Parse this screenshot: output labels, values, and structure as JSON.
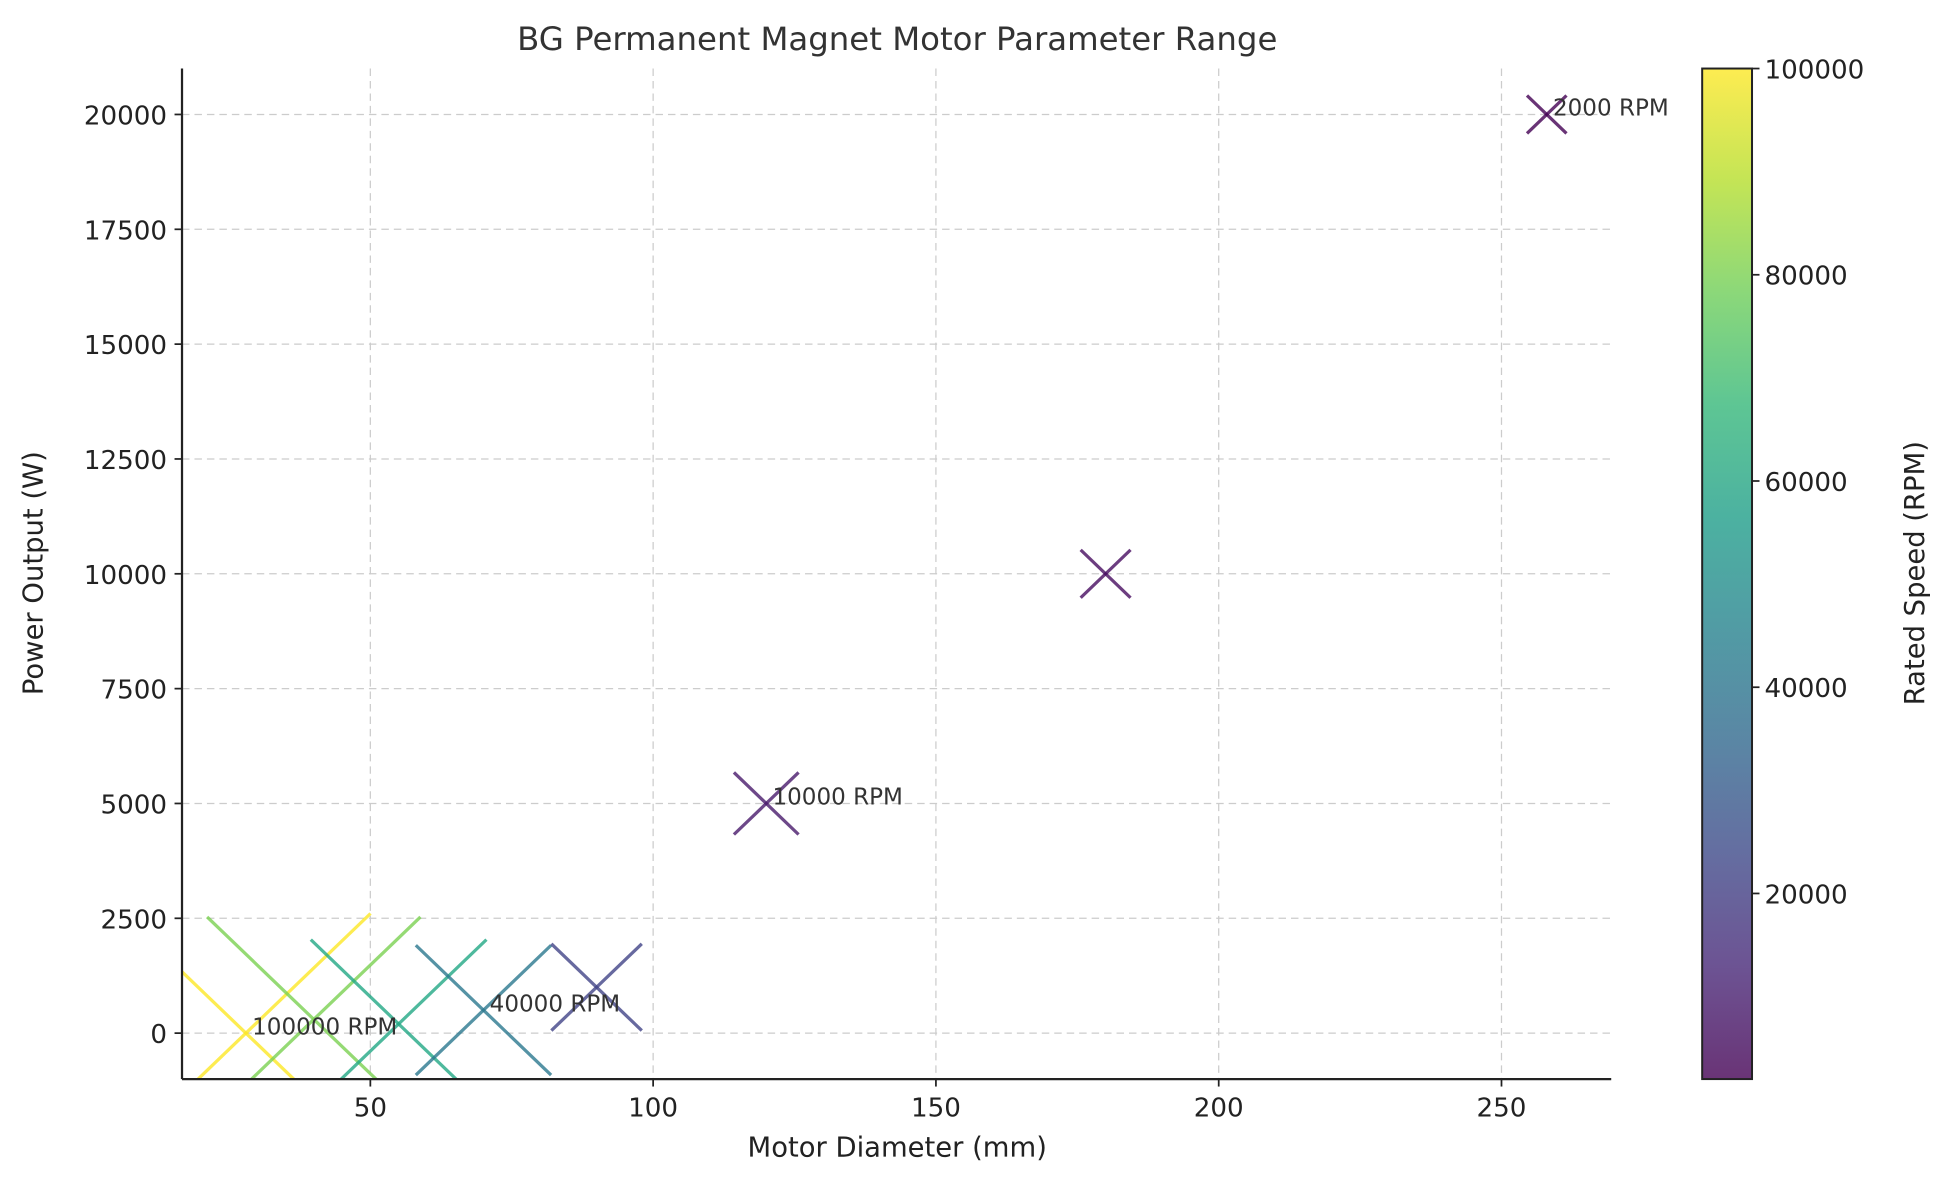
{
  "chart_data": {
    "type": "scatter",
    "title": "BG Permanent Magnet Motor Parameter Range",
    "xlabel": "Motor Diameter (mm)",
    "ylabel": "Power Output (W)",
    "xlim": [
      16.7,
      269.4
    ],
    "ylim": [
      -1000,
      21000
    ],
    "xticks": [
      50,
      100,
      150,
      200,
      250
    ],
    "yticks": [
      0,
      2500,
      5000,
      7500,
      10000,
      12500,
      15000,
      17500,
      20000
    ],
    "grid": true,
    "marker": "x",
    "points": [
      {
        "x": 28,
        "y": 0,
        "rpm": 100000,
        "color": "#fde725",
        "label": "100000 RPM"
      },
      {
        "x": 40,
        "y": 300,
        "rpm": 80000,
        "color": "#7ad151",
        "label": ""
      },
      {
        "x": 55,
        "y": 200,
        "rpm": 60000,
        "color": "#22a884",
        "label": ""
      },
      {
        "x": 70,
        "y": 500,
        "rpm": 40000,
        "color": "#2a788e",
        "label": "40000 RPM"
      },
      {
        "x": 90,
        "y": 1000,
        "rpm": 20000,
        "color": "#414487",
        "label": ""
      },
      {
        "x": 120,
        "y": 5000,
        "rpm": 10000,
        "color": "#481a6c",
        "label": "10000 RPM"
      },
      {
        "x": 180,
        "y": 10000,
        "rpm": 5000,
        "color": "#470d60",
        "label": ""
      },
      {
        "x": 258,
        "y": 20000,
        "rpm": 2000,
        "color": "#440154",
        "label": "2000 RPM"
      }
    ],
    "colorbar": {
      "label": "Rated Speed (RPM)",
      "range": [
        2000,
        100000
      ],
      "ticks": [
        20000,
        40000,
        60000,
        80000,
        100000
      ],
      "colormap": [
        "#440154",
        "#482878",
        "#3e4989",
        "#31688e",
        "#26828e",
        "#1f9e89",
        "#35b779",
        "#6ece58",
        "#b5de2b",
        "#fde725"
      ]
    }
  }
}
